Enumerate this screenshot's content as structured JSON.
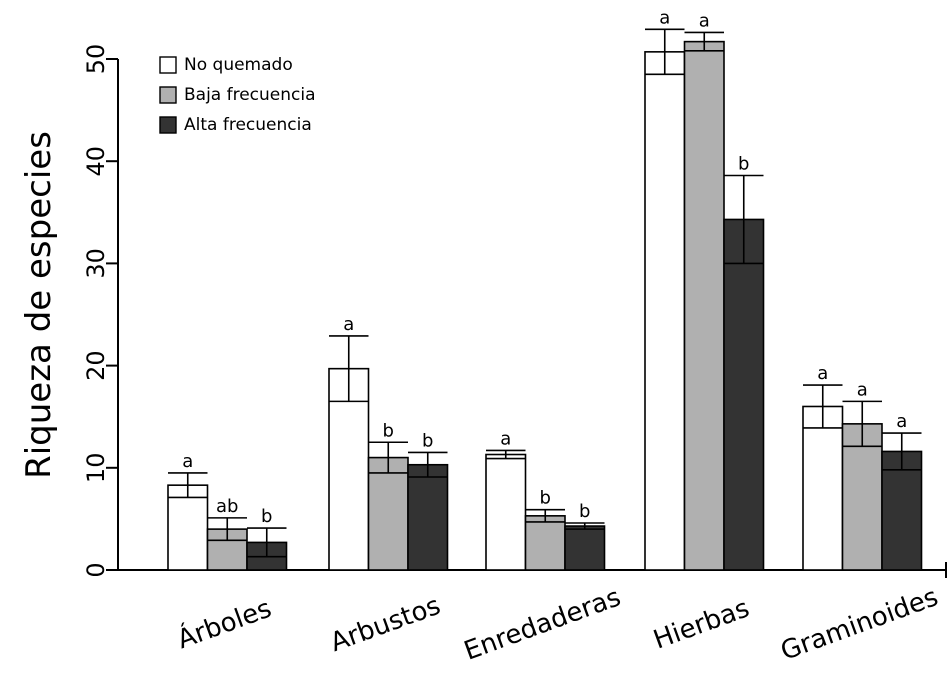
{
  "chart_data": {
    "type": "bar",
    "title": "",
    "xlabel": "",
    "ylabel": "Riqueza de especies",
    "ylim": [
      0,
      50
    ],
    "yticks": [
      0,
      10,
      20,
      30,
      40,
      50
    ],
    "grid": false,
    "legend_position": "top-left",
    "categories": [
      "Árboles",
      "Arbustos",
      "Enredaderas",
      "Hierbas",
      "Graminoides"
    ],
    "series": [
      {
        "name": "No quemado",
        "color": "#ffffff",
        "values": [
          8.3,
          19.7,
          11.3,
          50.7,
          16.0
        ],
        "errors": [
          1.2,
          3.2,
          0.4,
          2.2,
          2.1
        ],
        "letters": [
          "a",
          "a",
          "a",
          "a",
          "a"
        ]
      },
      {
        "name": "Baja frecuencia",
        "color": "#b0b0b0",
        "values": [
          4.0,
          11.0,
          5.3,
          51.7,
          14.3
        ],
        "errors": [
          1.1,
          1.5,
          0.6,
          0.9,
          2.2
        ],
        "letters": [
          "ab",
          "b",
          "b",
          "a",
          "a"
        ]
      },
      {
        "name": "Alta frecuencia",
        "color": "#333333",
        "values": [
          2.7,
          10.3,
          4.3,
          34.3,
          11.6
        ],
        "errors": [
          1.4,
          1.2,
          0.3,
          4.3,
          1.8
        ],
        "letters": [
          "b",
          "b",
          "b",
          "b",
          "a"
        ]
      }
    ]
  }
}
